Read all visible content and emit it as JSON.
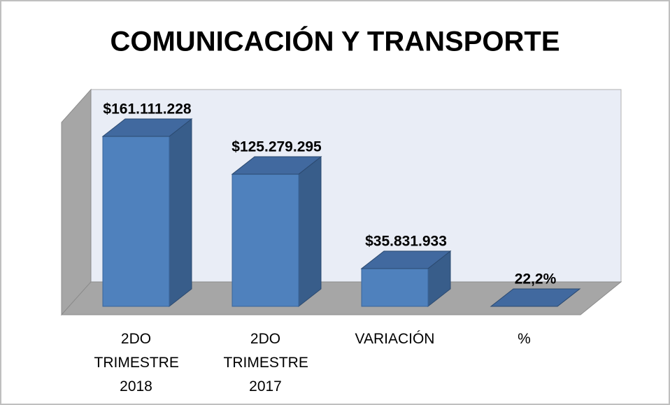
{
  "chart_data": {
    "type": "bar3d",
    "title": "COMUNICACIÓN Y TRANSPORTE",
    "categories": [
      "2DO TRIMESTRE 2018",
      "2DO TRIMESTRE 2017",
      "VARIACIÓN",
      "%"
    ],
    "values": [
      161111228,
      125279295,
      35831933,
      22.2
    ],
    "value_labels": [
      "$161.111.228",
      "$125.279.295",
      "$35.831.933",
      "22,2%"
    ],
    "color": "#4f81bd"
  }
}
